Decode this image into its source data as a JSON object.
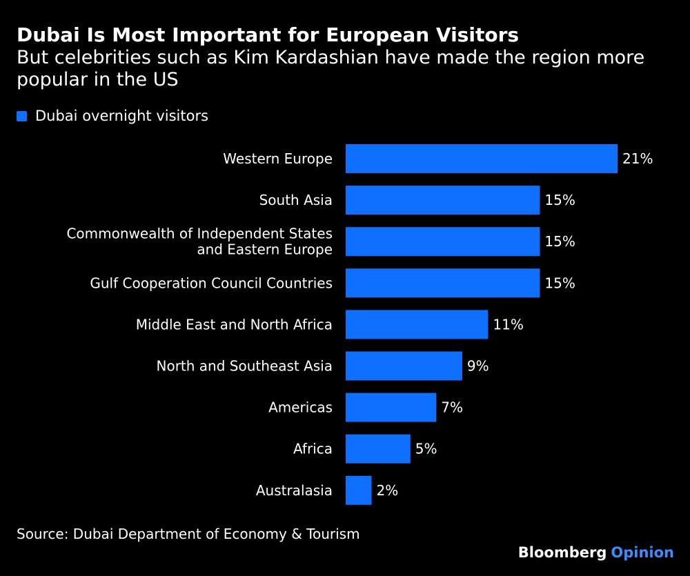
{
  "header": {
    "title": "Dubai Is Most Important for European Visitors",
    "subtitle": "But celebrities such as Kim Kardashian have made the region more popular in the US"
  },
  "footer": {
    "source": "Source: Dubai Department of Economy & Tourism",
    "brand": "Bloomberg",
    "brand_suffix": "Opinion"
  },
  "colors": {
    "background": "#000000",
    "bar": "#0f6fff",
    "text": "#ffffff",
    "brand_suffix": "#3d8bff"
  },
  "chart_data": {
    "type": "bar",
    "orientation": "horizontal",
    "title": "Dubai Is Most Important for European Visitors",
    "subtitle": "But celebrities such as Kim Kardashian have made the region more popular in the US",
    "xlabel": "",
    "ylabel": "",
    "xlim": [
      0,
      21
    ],
    "grid": false,
    "legend_position": "top-left",
    "value_suffix": "%",
    "categories": [
      [
        "Western Europe"
      ],
      [
        "South Asia"
      ],
      [
        "Commonwealth of Independent States",
        "and Eastern Europe"
      ],
      [
        "Gulf Cooperation Council Countries"
      ],
      [
        "Middle East and North Africa"
      ],
      [
        "North and Southeast Asia"
      ],
      [
        "Americas"
      ],
      [
        "Africa"
      ],
      [
        "Australasia"
      ]
    ],
    "series": [
      {
        "name": "Dubai overnight visitors",
        "values": [
          21,
          15,
          15,
          15,
          11,
          9,
          7,
          5,
          2
        ],
        "labels": [
          "21%",
          "15%",
          "15%",
          "15%",
          "11%",
          "9%",
          "7%",
          "5%",
          "2%"
        ]
      }
    ]
  }
}
